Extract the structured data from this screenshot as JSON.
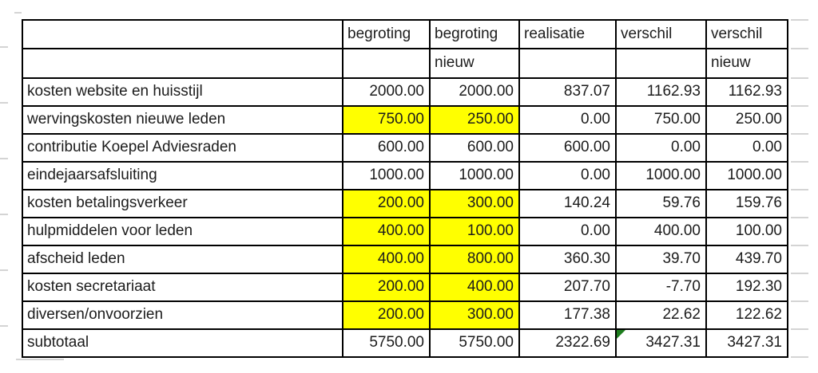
{
  "colors": {
    "highlight_yellow": "#ffff00",
    "cell_border": "#000000",
    "text": "#1c1c1c",
    "error_triangle_green": "#1e7e1e",
    "gridline_gray": "#d4d4d4",
    "background": "#ffffff"
  },
  "table": {
    "header_row1": [
      "",
      "begroting",
      "begroting",
      "realisatie",
      "verschil",
      "verschil"
    ],
    "header_row2": [
      "",
      "",
      "nieuw",
      "",
      "",
      "nieuw"
    ],
    "rows": [
      {
        "label": "kosten website en huisstijl",
        "values": [
          "2000.00",
          "2000.00",
          "837.07",
          "1162.93",
          "1162.93"
        ],
        "highlight": [
          false,
          false,
          false,
          false,
          false
        ],
        "error_cols": []
      },
      {
        "label": "wervingskosten nieuwe leden",
        "values": [
          "750.00",
          "250.00",
          "0.00",
          "750.00",
          "250.00"
        ],
        "highlight": [
          true,
          true,
          false,
          false,
          false
        ],
        "error_cols": []
      },
      {
        "label": "contributie Koepel Adviesraden",
        "values": [
          "600.00",
          "600.00",
          "600.00",
          "0.00",
          "0.00"
        ],
        "highlight": [
          false,
          false,
          false,
          false,
          false
        ],
        "error_cols": []
      },
      {
        "label": "eindejaarsafsluiting",
        "values": [
          "1000.00",
          "1000.00",
          "0.00",
          "1000.00",
          "1000.00"
        ],
        "highlight": [
          false,
          false,
          false,
          false,
          false
        ],
        "error_cols": []
      },
      {
        "label": "kosten betalingsverkeer",
        "values": [
          "200.00",
          "300.00",
          "140.24",
          "59.76",
          "159.76"
        ],
        "highlight": [
          true,
          true,
          false,
          false,
          false
        ],
        "error_cols": []
      },
      {
        "label": "hulpmiddelen voor leden",
        "values": [
          "400.00",
          "100.00",
          "0.00",
          "400.00",
          "100.00"
        ],
        "highlight": [
          true,
          true,
          false,
          false,
          false
        ],
        "error_cols": []
      },
      {
        "label": "afscheid leden",
        "values": [
          "400.00",
          "800.00",
          "360.30",
          "39.70",
          "439.70"
        ],
        "highlight": [
          true,
          true,
          false,
          false,
          false
        ],
        "error_cols": []
      },
      {
        "label": "kosten secretariaat",
        "values": [
          "200.00",
          "400.00",
          "207.70",
          "-7.70",
          "192.30"
        ],
        "highlight": [
          true,
          true,
          false,
          false,
          false
        ],
        "error_cols": []
      },
      {
        "label": "diversen/onvoorzien",
        "values": [
          "200.00",
          "300.00",
          "177.38",
          "22.62",
          "122.62"
        ],
        "highlight": [
          true,
          true,
          false,
          false,
          false
        ],
        "error_cols": []
      },
      {
        "label": "subtotaal",
        "values": [
          "5750.00",
          "5750.00",
          "2322.69",
          "3427.31",
          "3427.31"
        ],
        "highlight": [
          false,
          false,
          false,
          false,
          false
        ],
        "error_cols": [
          3
        ]
      }
    ]
  }
}
